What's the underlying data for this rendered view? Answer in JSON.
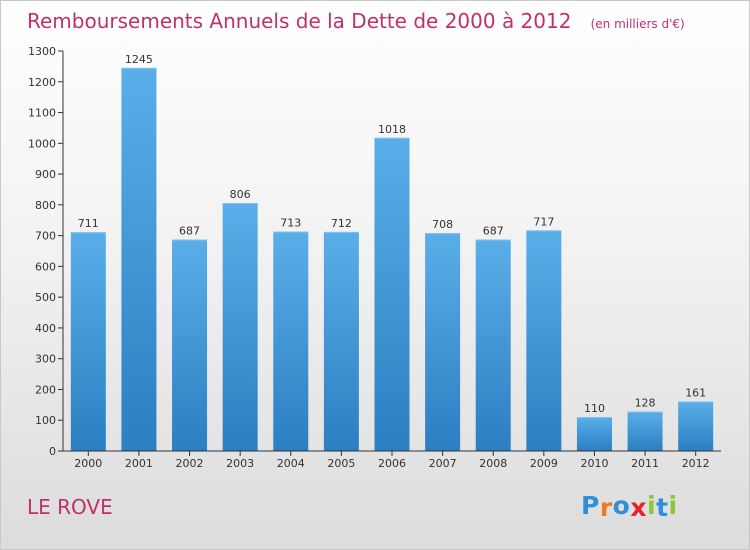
{
  "title": "Remboursements Annuels de la Dette de 2000 à 2012",
  "unit": "(en milliers d'€)",
  "commune": "LE ROVE",
  "logo": {
    "text": "Proxiti",
    "letters": [
      "P",
      "r",
      "o",
      "x",
      "i",
      "t",
      "i"
    ],
    "colors": [
      "#2f8fd8",
      "#ee7a1b",
      "#2f8fd8",
      "#e8202a",
      "#8cc63f",
      "#2f8fd8",
      "#8cc63f"
    ]
  },
  "colors": {
    "title": "#c0306a",
    "bar_top": "#5aaee8",
    "bar_bottom": "#2b7fc2",
    "axis": "#333333",
    "grid": "#cfcfcf"
  },
  "chart_data": {
    "type": "bar",
    "categories": [
      "2000",
      "2001",
      "2002",
      "2003",
      "2004",
      "2005",
      "2006",
      "2007",
      "2008",
      "2009",
      "2010",
      "2011",
      "2012"
    ],
    "values": [
      711,
      1245,
      687,
      806,
      713,
      712,
      1018,
      708,
      687,
      717,
      110,
      128,
      161
    ],
    "title": "Remboursements Annuels de la Dette de 2000 à 2012",
    "xlabel": "",
    "ylabel": "",
    "ylim": [
      0,
      1300
    ],
    "yticks": [
      0,
      100,
      200,
      300,
      400,
      500,
      600,
      700,
      800,
      900,
      1000,
      1100,
      1200,
      1300
    ],
    "data_labels": true,
    "grid": false,
    "legend": "none"
  }
}
